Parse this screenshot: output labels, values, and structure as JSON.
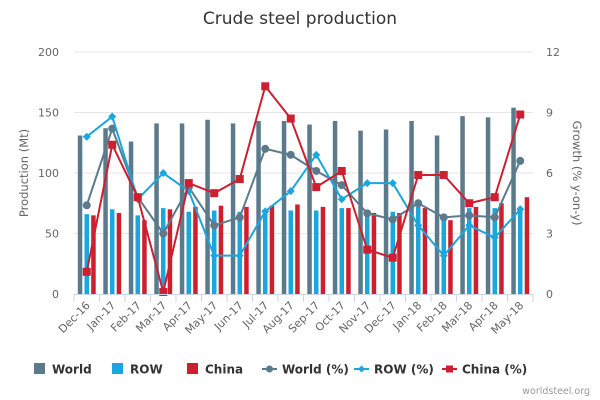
{
  "chart_data": {
    "type": "bar",
    "title": "Crude steel production",
    "xlabel": "",
    "ylabel": "Production (Mt)",
    "y2label": "Growth (% y-on-y)",
    "ylim": [
      0,
      200
    ],
    "y2lim": [
      0,
      12
    ],
    "yticks": [
      0,
      50,
      100,
      150,
      200
    ],
    "y2ticks": [
      0,
      3,
      6,
      9,
      12
    ],
    "grid": true,
    "legend_position": "bottom",
    "categories": [
      "Dec-16",
      "Jan-17",
      "Feb-17",
      "Mar-17",
      "Apr-17",
      "May-17",
      "Jun-17",
      "Jul-17",
      "Aug-17",
      "Sep-17",
      "Oct-17",
      "Nov-17",
      "Dec-17",
      "Jan-18",
      "Feb-18",
      "Mar-18",
      "Apr-18",
      "May-18"
    ],
    "series": [
      {
        "name": "World",
        "type": "bar",
        "axis": "left",
        "color": "#5b7b8c",
        "values": [
          131,
          137,
          126,
          141,
          141,
          144,
          141,
          143,
          143,
          140,
          143,
          135,
          136,
          143,
          131,
          147,
          146,
          154
        ]
      },
      {
        "name": "ROW",
        "type": "bar",
        "axis": "left",
        "color": "#1ba6dd",
        "values": [
          66,
          70,
          65,
          71,
          68,
          69,
          68,
          69,
          69,
          69,
          71,
          68,
          68,
          72,
          64,
          71,
          71,
          72
        ]
      },
      {
        "name": "China",
        "type": "bar",
        "axis": "left",
        "color": "#cc2030",
        "values": [
          65,
          67,
          61,
          70,
          72,
          73,
          72,
          73,
          74,
          72,
          71,
          67,
          67,
          71,
          61,
          72,
          75,
          80
        ]
      },
      {
        "name": "World (%)",
        "type": "line",
        "axis": "right",
        "color": "#5b7b8c",
        "marker": "circle",
        "values": [
          4.4,
          8.2,
          4.8,
          3.0,
          5.3,
          3.4,
          3.8,
          7.2,
          6.9,
          6.1,
          5.4,
          4.0,
          3.7,
          4.5,
          3.8,
          3.9,
          3.8,
          6.6
        ]
      },
      {
        "name": "ROW (%)",
        "type": "line",
        "axis": "right",
        "color": "#1ba6dd",
        "marker": "diamond",
        "values": [
          7.8,
          8.8,
          4.7,
          6.0,
          5.1,
          1.9,
          1.9,
          4.1,
          5.1,
          6.9,
          4.7,
          5.5,
          5.5,
          3.4,
          1.9,
          3.4,
          2.8,
          4.2
        ]
      },
      {
        "name": "China (%)",
        "type": "line",
        "axis": "right",
        "color": "#cc2030",
        "marker": "square",
        "values": [
          1.1,
          7.4,
          4.8,
          0.1,
          5.5,
          5.0,
          5.7,
          10.3,
          8.7,
          5.3,
          6.1,
          2.2,
          1.8,
          5.9,
          5.9,
          4.5,
          4.8,
          8.9
        ]
      }
    ],
    "credit": "worldsteel.org"
  }
}
